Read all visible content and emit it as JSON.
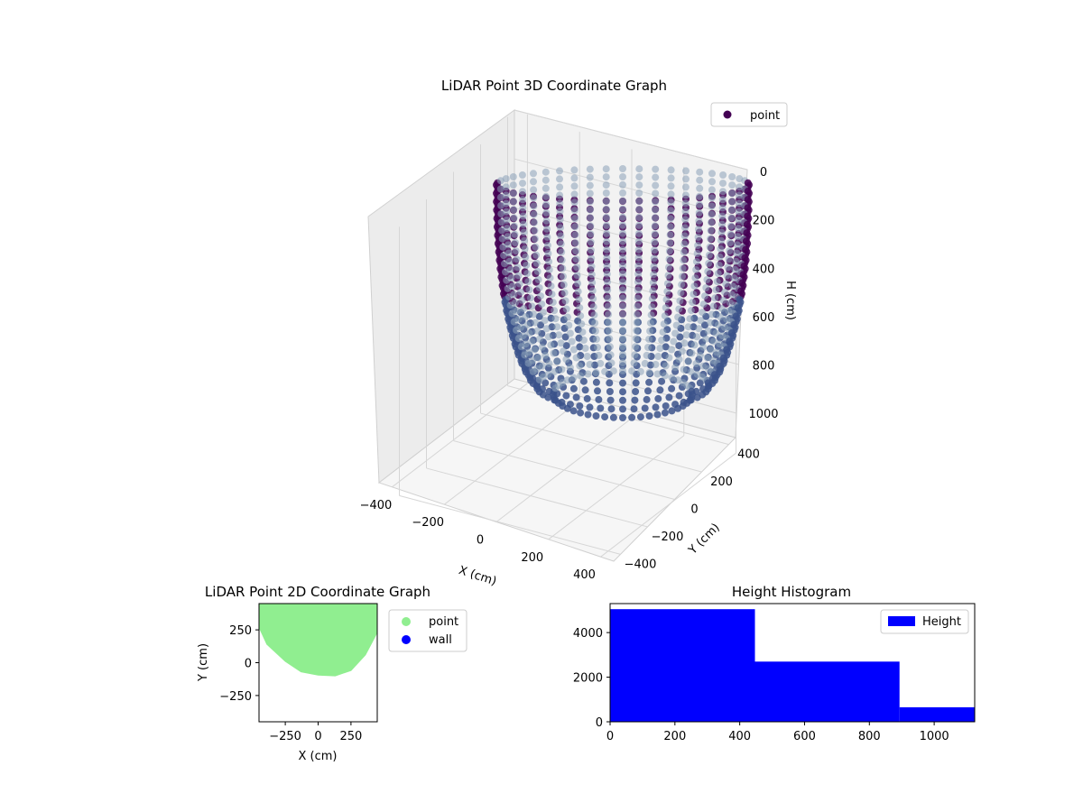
{
  "chart_data": [
    {
      "type": "scatter",
      "projection": "3d",
      "title": "LiDAR Point 3D Coordinate Graph",
      "xlabel": "X (cm)",
      "ylabel": "Y (cm)",
      "zlabel": "H (cm)",
      "xlim": [
        -450,
        450
      ],
      "ylim": [
        -450,
        450
      ],
      "zlim": [
        1100,
        0
      ],
      "xticks": [
        -400,
        -200,
        0,
        200,
        400
      ],
      "yticks": [
        -400,
        -200,
        0,
        200,
        400
      ],
      "zticks": [
        0,
        200,
        400,
        600,
        800,
        1000
      ],
      "legend": [
        "point"
      ],
      "legend_position": "top-right",
      "grid": true,
      "colormap": "viridis",
      "shape": {
        "kind": "hemispherical bowl of points",
        "radius": 450,
        "depth": 1000
      },
      "colors": {
        "dark": "#440154",
        "light": "#3b528b",
        "accent": "#8aa0b8"
      }
    },
    {
      "type": "scatter",
      "title": "LiDAR Point 2D Coordinate Graph",
      "xlabel": "X (cm)",
      "ylabel": "Y (cm)",
      "xlim": [
        -450,
        450
      ],
      "ylim": [
        -450,
        450
      ],
      "xticks": [
        -250,
        0,
        250
      ],
      "yticks": [
        -250,
        0,
        250
      ],
      "series": [
        {
          "name": "point",
          "color": "#90ee90",
          "region_outline": [
            [
              -450,
              450
            ],
            [
              -450,
              270
            ],
            [
              -390,
              140
            ],
            [
              -250,
              10
            ],
            [
              -130,
              -70
            ],
            [
              0,
              -95
            ],
            [
              130,
              -100
            ],
            [
              250,
              -60
            ],
            [
              360,
              60
            ],
            [
              450,
              230
            ],
            [
              450,
              450
            ]
          ]
        },
        {
          "name": "wall",
          "color": "#0000ff",
          "values": []
        }
      ],
      "legend_position": "outside-right"
    },
    {
      "type": "bar",
      "title": "Height Histogram",
      "xlabel": "",
      "ylabel": "",
      "xlim": [
        0,
        1125
      ],
      "ylim": [
        0,
        5300
      ],
      "xticks": [
        0,
        200,
        400,
        600,
        800,
        1000
      ],
      "yticks": [
        0,
        2000,
        4000
      ],
      "bins": [
        {
          "from": 0,
          "to": 447,
          "count": 5050
        },
        {
          "from": 447,
          "to": 893,
          "count": 2700
        },
        {
          "from": 893,
          "to": 1125,
          "count": 650
        }
      ],
      "series": [
        {
          "name": "Height",
          "color": "#0000ff"
        }
      ],
      "legend_position": "top-right"
    }
  ]
}
